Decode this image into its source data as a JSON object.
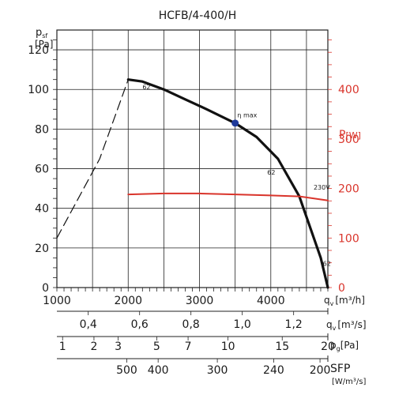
{
  "chart_data": {
    "type": "line",
    "title": "HCFB/4-400/H",
    "left_axis": {
      "label_main": "p",
      "label_sub": "sf",
      "unit": "[Pa]",
      "ticks": [
        "0",
        "20",
        "40",
        "60",
        "80",
        "100",
        "120"
      ],
      "ylim": [
        0,
        130
      ]
    },
    "right_axis": {
      "label_main": "P",
      "unit": "[W]",
      "color": "#d9342b",
      "ticks": [
        "0",
        "100",
        "200",
        "300",
        "400"
      ],
      "ylim": [
        0,
        520
      ]
    },
    "x_axis": {
      "label_main": "q",
      "label_sub": "v",
      "unit": "[m³/h]",
      "ticks": [
        "1000",
        "2000",
        "3000",
        "4000"
      ],
      "xlim": [
        1000,
        4800
      ]
    },
    "secondary_scales": [
      {
        "id": "flow-m3s",
        "label_main": "q",
        "label_sub": "v",
        "unit": "[m³/s]",
        "ticks": [
          {
            "label": "0,4",
            "at_m3h": 1440
          },
          {
            "label": "0,6",
            "at_m3h": 2160
          },
          {
            "label": "0,8",
            "at_m3h": 2880
          },
          {
            "label": "1,0",
            "at_m3h": 3600
          },
          {
            "label": "1,2",
            "at_m3h": 4320
          }
        ]
      },
      {
        "id": "dynamic-pressure",
        "label_main": "p",
        "label_sub": "g",
        "unit": "[Pa]",
        "ticks": [
          {
            "label": "1",
            "at_m3h": 1080
          },
          {
            "label": "2",
            "at_m3h": 1520
          },
          {
            "label": "3",
            "at_m3h": 1860
          },
          {
            "label": "5",
            "at_m3h": 2400
          },
          {
            "label": "7",
            "at_m3h": 2840
          },
          {
            "label": "10",
            "at_m3h": 3400
          },
          {
            "label": "15",
            "at_m3h": 4160
          },
          {
            "label": "20",
            "at_m3h": 4800
          }
        ]
      },
      {
        "id": "sfp",
        "label": "SFP",
        "unit": "[W/m³/s]",
        "ticks": [
          {
            "label": "500",
            "at_m3h": 1980
          },
          {
            "label": "400",
            "at_m3h": 2420
          },
          {
            "label": "300",
            "at_m3h": 3250
          },
          {
            "label": "240",
            "at_m3h": 4040
          },
          {
            "label": "200",
            "at_m3h": 4690
          }
        ]
      }
    ],
    "series": [
      {
        "id": "pressure-curve",
        "axis": "left",
        "color": "#111111",
        "x": [
          2000,
          2200,
          2500,
          2800,
          3100,
          3500,
          3800,
          4100,
          4400,
          4700,
          4800
        ],
        "y": [
          105,
          104,
          100,
          95,
          90,
          83,
          76,
          65,
          46,
          15,
          0
        ]
      },
      {
        "id": "pressure-extension-dashed",
        "axis": "left",
        "color": "#111111",
        "style": "dashed",
        "x": [
          1000,
          1300,
          1600,
          2000
        ],
        "y": [
          25,
          45,
          65,
          105
        ]
      },
      {
        "name": "230V",
        "axis": "right",
        "color": "#d9342b",
        "x": [
          2000,
          2500,
          3000,
          3500,
          4000,
          4400,
          4800
        ],
        "y": [
          188,
          190,
          190,
          188,
          186,
          184,
          176
        ]
      }
    ],
    "annotations": [
      {
        "text": "62",
        "x": 2200,
        "y": 100
      },
      {
        "text": "62",
        "x": 3950,
        "y": 57
      },
      {
        "text": "62",
        "x": 4730,
        "y": 11
      },
      {
        "text": "η max",
        "x": 3530,
        "y": 86,
        "color": "#1f2a80"
      },
      {
        "text": "230V",
        "x": 4600,
        "y_right": 198,
        "color": "#d9342b"
      }
    ],
    "marker": {
      "label": "η max",
      "x": 3500,
      "y": 83,
      "color": "#1f3a9b"
    },
    "grid": true
  }
}
